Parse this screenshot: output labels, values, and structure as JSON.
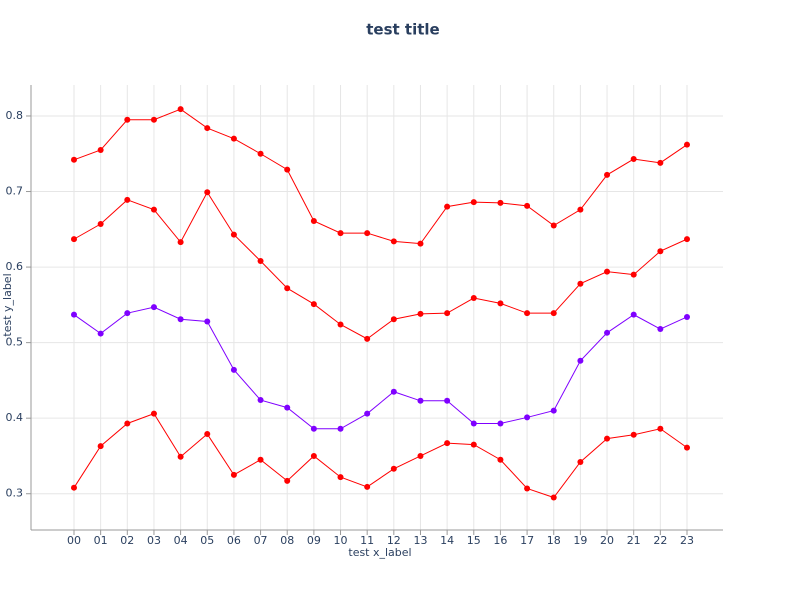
{
  "chart_data": {
    "type": "line",
    "title": "test title",
    "x_label": "test x_label",
    "y_label": "test y_label",
    "categories": [
      "00",
      "01",
      "02",
      "03",
      "04",
      "05",
      "06",
      "07",
      "08",
      "09",
      "10",
      "11",
      "12",
      "13",
      "14",
      "15",
      "16",
      "17",
      "18",
      "19",
      "20",
      "21",
      "22",
      "23"
    ],
    "series": [
      {
        "color": "#ff0000",
        "values": [
          0.742,
          0.755,
          0.795,
          0.795,
          0.809,
          0.784,
          0.77,
          0.75,
          0.729,
          0.661,
          0.645,
          0.645,
          0.634,
          0.631,
          0.68,
          0.686,
          0.685,
          0.681,
          0.655,
          0.676,
          0.722,
          0.743,
          0.738,
          0.762
        ]
      },
      {
        "color": "#ff0000",
        "values": [
          0.637,
          0.657,
          0.689,
          0.676,
          0.633,
          0.699,
          0.643,
          0.608,
          0.572,
          0.551,
          0.524,
          0.505,
          0.531,
          0.538,
          0.539,
          0.559,
          0.552,
          0.539,
          0.539,
          0.578,
          0.594,
          0.59,
          0.621,
          0.637
        ]
      },
      {
        "color": "#7f00ff",
        "values": [
          0.537,
          0.512,
          0.539,
          0.547,
          0.531,
          0.528,
          0.464,
          0.424,
          0.414,
          0.386,
          0.386,
          0.406,
          0.435,
          0.423,
          0.423,
          0.393,
          0.393,
          0.401,
          0.41,
          0.476,
          0.513,
          0.537,
          0.518,
          0.534
        ]
      },
      {
        "color": "#ff0000",
        "values": [
          0.308,
          0.363,
          0.393,
          0.406,
          0.349,
          0.379,
          0.325,
          0.345,
          0.317,
          0.35,
          0.322,
          0.309,
          0.333,
          0.35,
          0.367,
          0.365,
          0.345,
          0.307,
          0.295,
          0.342,
          0.373,
          0.378,
          0.386,
          0.361
        ]
      }
    ],
    "ylim": [
      0.252,
      0.841
    ],
    "yticks": [
      0.3,
      0.4,
      0.5,
      0.6,
      0.7,
      0.8
    ],
    "grid": true
  }
}
